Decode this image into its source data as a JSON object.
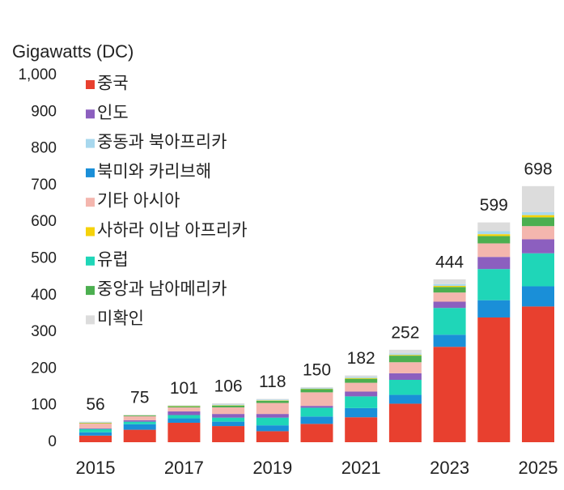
{
  "chart_data": {
    "type": "bar",
    "stacked": true,
    "y_axis_label": "Gigawatts (DC)",
    "categories": [
      "2015",
      null,
      "2017",
      null,
      "2019",
      null,
      "2021",
      null,
      "2023",
      null,
      "2025"
    ],
    "totals": [
      56,
      75,
      101,
      106,
      118,
      150,
      182,
      252,
      444,
      599,
      698
    ],
    "series": [
      {
        "name": "중국",
        "color": "#e8402f",
        "values": [
          18,
          34,
          53,
          44,
          30,
          50,
          68,
          105,
          260,
          340,
          370
        ]
      },
      {
        "name": "인도",
        "color": "#8c5fbf",
        "values": [
          2,
          4,
          10,
          10,
          10,
          5,
          13,
          18,
          17,
          33,
          38
        ]
      },
      {
        "name": "중동과 북아프리카",
        "color": "#a8d8ee",
        "values": [
          1,
          0.5,
          1,
          2,
          2,
          2,
          3,
          4,
          5,
          8,
          8
        ]
      },
      {
        "name": "북미와 카리브해",
        "color": "#1a8fd8",
        "values": [
          9,
          15,
          12,
          12,
          16,
          20,
          25,
          24,
          33,
          47,
          55
        ]
      },
      {
        "name": "기타 아시아",
        "color": "#f4b6ae",
        "values": [
          13,
          11,
          11,
          18,
          30,
          37,
          24,
          30,
          25,
          37,
          36
        ]
      },
      {
        "name": "사하라 이남 아프리카",
        "color": "#f5d20a",
        "values": [
          1,
          0.5,
          1,
          1,
          1,
          1,
          2,
          2,
          3,
          5,
          6
        ]
      },
      {
        "name": "유럽",
        "color": "#1fd6b8",
        "values": [
          9,
          7,
          9,
          11,
          21,
          24,
          32,
          41,
          73,
          85,
          90
        ]
      },
      {
        "name": "중앙과 남아메리카",
        "color": "#4caf50",
        "values": [
          1,
          2,
          3,
          5,
          6,
          9,
          11,
          18,
          15,
          20,
          24
        ]
      },
      {
        "name": "미확인",
        "color": "#dcdcdc",
        "values": [
          2,
          1,
          1,
          3,
          2,
          2,
          4,
          10,
          13,
          24,
          71
        ]
      }
    ],
    "ylim": [
      0,
      1000
    ],
    "yticks": [
      0,
      100,
      200,
      300,
      400,
      500,
      600,
      700,
      800,
      900,
      {
        "value": 1000,
        "label": "1,000"
      }
    ]
  }
}
